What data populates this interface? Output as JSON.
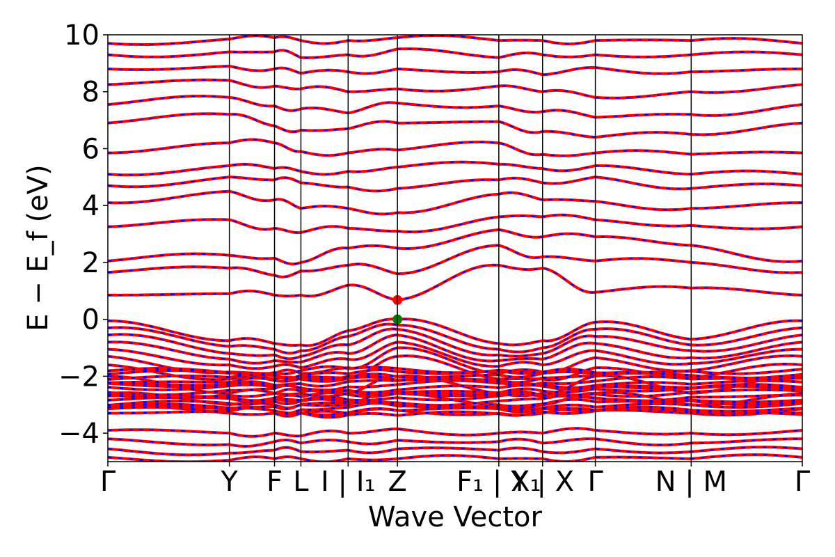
{
  "chart_data": {
    "type": "line",
    "title": "",
    "xlabel": "Wave Vector",
    "ylabel": "E − E_f (eV)",
    "ylim": [
      -5,
      10
    ],
    "yticks": [
      -4,
      -2,
      0,
      2,
      4,
      6,
      8,
      10
    ],
    "ytick_labels": [
      "−4",
      "−2",
      "0",
      "2",
      "4",
      "6",
      "8",
      "10"
    ],
    "grid": false,
    "legend": "none",
    "kpath": [
      {
        "label": "Γ",
        "x": 0.0
      },
      {
        "label": "Y",
        "x": 1.75
      },
      {
        "label": "F",
        "x": 2.4
      },
      {
        "label": "L",
        "x": 2.78
      },
      {
        "label": "I | I₁",
        "x": 3.46
      },
      {
        "label": "Z",
        "x": 4.17
      },
      {
        "label": "F₁ | X₁",
        "x": 5.63
      },
      {
        "label": "Y | X",
        "x": 6.26
      },
      {
        "label": "Γ",
        "x": 7.02
      },
      {
        "label": "N | M",
        "x": 8.4
      },
      {
        "label": "Γ",
        "x": 10.0
      }
    ],
    "xlim": [
      0,
      10
    ],
    "segments_x": [
      0,
      1.75,
      2.4,
      2.78,
      3.46,
      4.17,
      5.63,
      6.26,
      7.02,
      8.4,
      10.0
    ],
    "series": [
      {
        "style": "solid",
        "color": "#ff0000"
      },
      {
        "style": "dashed",
        "color": "#0000ff"
      }
    ],
    "valence_band_max": {
      "x": 4.17,
      "y": 0.0,
      "color": "#008000"
    },
    "conduction_band_min": {
      "x": 4.17,
      "y": 0.68,
      "color": "#ff0000"
    },
    "conduction_bands_at_path_points": [
      [
        0.85,
        1.65,
        2.05,
        3.25,
        4.1,
        4.7,
        5.1,
        5.85,
        6.9,
        7.55,
        8.25,
        8.8,
        9.3,
        9.7
      ],
      [
        0.9,
        1.8,
        2.25,
        3.5,
        4.5,
        5.0,
        5.4,
        6.2,
        7.2,
        7.8,
        8.4,
        8.9,
        9.4,
        9.85
      ],
      [
        0.85,
        1.55,
        2.15,
        3.2,
        4.2,
        4.9,
        5.3,
        6.2,
        6.8,
        7.5,
        8.2,
        8.8,
        9.4,
        9.9
      ],
      [
        0.85,
        1.7,
        2.0,
        3.05,
        3.9,
        4.8,
        5.2,
        5.9,
        6.65,
        7.4,
        8.1,
        8.65,
        9.2,
        9.8
      ],
      [
        1.2,
        1.9,
        2.5,
        3.2,
        3.9,
        4.65,
        5.2,
        5.85,
        6.7,
        7.25,
        8.0,
        8.7,
        9.3,
        9.8
      ],
      [
        0.68,
        1.6,
        2.5,
        3.1,
        3.75,
        4.6,
        5.35,
        5.95,
        6.9,
        7.6,
        8.1,
        8.8,
        9.5,
        9.9
      ],
      [
        1.9,
        2.6,
        3.15,
        3.6,
        4.4,
        4.9,
        5.45,
        6.2,
        6.95,
        7.5,
        8.2,
        8.7,
        9.2,
        9.8
      ],
      [
        1.8,
        2.2,
        2.9,
        3.6,
        4.2,
        4.8,
        5.3,
        5.8,
        6.6,
        7.3,
        8.0,
        8.6,
        9.3,
        9.8
      ],
      [
        0.95,
        2.05,
        2.9,
        3.5,
        4.15,
        5.0,
        5.4,
        5.85,
        6.4,
        7.1,
        7.8,
        8.85,
        9.3,
        9.8
      ],
      [
        1.1,
        2.0,
        2.6,
        3.3,
        3.9,
        4.6,
        5.1,
        5.8,
        6.5,
        7.2,
        8.0,
        8.7,
        9.3,
        9.8
      ],
      [
        0.85,
        1.65,
        2.05,
        3.25,
        4.1,
        4.7,
        5.1,
        5.85,
        6.9,
        7.55,
        8.25,
        8.8,
        9.3,
        9.7
      ]
    ],
    "valence_bands_at_path_points": [
      [
        -0.05,
        -0.3,
        -0.55,
        -0.8,
        -1.05,
        -1.3,
        -1.6,
        -2.0,
        -2.6,
        -3.15,
        -3.9,
        -4.2,
        -4.55,
        -4.85
      ],
      [
        -0.75,
        -0.95,
        -1.2,
        -1.4,
        -1.6,
        -1.85,
        -2.1,
        -2.6,
        -3.0,
        -3.3,
        -4.0,
        -4.4,
        -4.7,
        -4.95
      ],
      [
        -0.85,
        -1.05,
        -1.25,
        -1.45,
        -1.65,
        -1.9,
        -2.1,
        -2.6,
        -3.0,
        -3.3,
        -4.0,
        -4.3,
        -4.6,
        -4.9
      ],
      [
        -0.9,
        -1.1,
        -1.3,
        -1.5,
        -1.7,
        -1.9,
        -2.1,
        -2.6,
        -3.0,
        -3.3,
        -4.1,
        -4.35,
        -4.65,
        -4.9
      ],
      [
        -0.4,
        -0.6,
        -0.9,
        -1.2,
        -1.4,
        -1.7,
        -2.0,
        -2.6,
        -3.0,
        -3.3,
        -4.0,
        -4.3,
        -4.6,
        -4.9
      ],
      [
        0.0,
        -0.2,
        -0.35,
        -0.55,
        -0.8,
        -1.0,
        -1.3,
        -2.0,
        -2.6,
        -3.2,
        -3.85,
        -4.25,
        -4.55,
        -4.9
      ],
      [
        -0.85,
        -1.05,
        -1.25,
        -1.45,
        -1.65,
        -1.9,
        -2.1,
        -2.6,
        -3.0,
        -3.3,
        -4.0,
        -4.3,
        -4.6,
        -4.9
      ],
      [
        -0.75,
        -1.0,
        -1.2,
        -1.4,
        -1.6,
        -1.85,
        -2.1,
        -2.6,
        -3.0,
        -3.3,
        -4.0,
        -4.35,
        -4.65,
        -4.9
      ],
      [
        -0.1,
        -0.35,
        -0.6,
        -0.85,
        -1.1,
        -1.35,
        -1.7,
        -2.0,
        -2.6,
        -3.2,
        -3.9,
        -4.2,
        -4.55,
        -4.85
      ],
      [
        -0.7,
        -0.9,
        -1.1,
        -1.35,
        -1.55,
        -1.8,
        -2.05,
        -2.6,
        -3.0,
        -3.3,
        -4.0,
        -4.35,
        -4.65,
        -4.9
      ],
      [
        -0.05,
        -0.3,
        -0.55,
        -0.8,
        -1.05,
        -1.3,
        -1.6,
        -2.0,
        -2.6,
        -3.15,
        -3.9,
        -4.2,
        -4.55,
        -4.85
      ]
    ],
    "dense_band_region": {
      "ymin": -3.3,
      "ymax": -1.8
    }
  }
}
